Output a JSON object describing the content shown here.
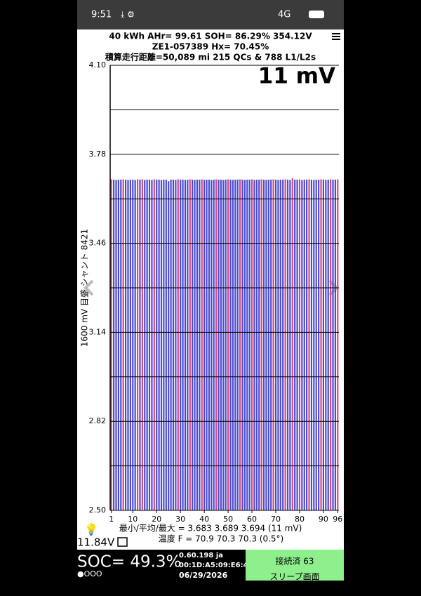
{
  "status_bar": {
    "time": "9:51",
    "network": "4G"
  },
  "header": {
    "line1": "40 kWh  AHr= 99.61  SOH= 86.29%  354.12V",
    "line2": "ZE1-057389  Hx= 70.45%",
    "line3": "積算走行距離=50,089 mi 215 QCs & 788 L1/L2s"
  },
  "chart_data": {
    "type": "bar",
    "annotation": "11 mV",
    "ylabel": "1600 mV 目盛 シャント 8421",
    "categories": [
      "1",
      null,
      null,
      null,
      null,
      null,
      null,
      null,
      null,
      "10",
      null,
      null,
      null,
      null,
      null,
      null,
      null,
      null,
      null,
      "20",
      null,
      null,
      null,
      null,
      null,
      null,
      null,
      null,
      null,
      "30",
      null,
      null,
      null,
      null,
      null,
      null,
      null,
      null,
      null,
      "40",
      null,
      null,
      null,
      null,
      null,
      null,
      null,
      null,
      null,
      "50",
      null,
      null,
      null,
      null,
      null,
      null,
      null,
      null,
      null,
      "60",
      null,
      null,
      null,
      null,
      null,
      null,
      null,
      null,
      null,
      "70",
      null,
      null,
      null,
      null,
      null,
      null,
      null,
      null,
      null,
      "80",
      null,
      null,
      null,
      null,
      null,
      null,
      null,
      null,
      null,
      "90",
      null,
      null,
      null,
      null,
      null,
      "96"
    ],
    "values": [
      3.69,
      3.689,
      3.688,
      3.689,
      3.689,
      3.69,
      3.689,
      3.688,
      3.689,
      3.689,
      3.688,
      3.69,
      3.689,
      3.69,
      3.688,
      3.689,
      3.689,
      3.688,
      3.69,
      3.689,
      3.689,
      3.688,
      3.689,
      3.689,
      3.683,
      3.689,
      3.689,
      3.688,
      3.69,
      3.689,
      3.689,
      3.688,
      3.689,
      3.69,
      3.689,
      3.688,
      3.689,
      3.689,
      3.69,
      3.688,
      3.689,
      3.689,
      3.688,
      3.689,
      3.69,
      3.689,
      3.689,
      3.688,
      3.689,
      3.69,
      3.689,
      3.688,
      3.689,
      3.689,
      3.69,
      3.689,
      3.688,
      3.689,
      3.689,
      3.69,
      3.688,
      3.689,
      3.689,
      3.69,
      3.689,
      3.688,
      3.689,
      3.689,
      3.69,
      3.689,
      3.688,
      3.689,
      3.689,
      3.69,
      3.689,
      3.688,
      3.694,
      3.689,
      3.689,
      3.69,
      3.688,
      3.689,
      3.689,
      3.69,
      3.689,
      3.688,
      3.689,
      3.689,
      3.69,
      3.689,
      3.688,
      3.689,
      3.69,
      3.689,
      3.689,
      3.69
    ],
    "colors": [
      "#d9467a",
      "#4a4ad6",
      "#4a4ad6",
      "#4a4ad6",
      "#4a4ad6",
      "#d9467a",
      "#4a4ad6",
      "#4a4ad6",
      "#4a4ad6",
      "#4a4ad6",
      "#4a4ad6",
      "#d9467a",
      "#4a4ad6",
      "#d9467a",
      "#4a4ad6",
      "#4a4ad6",
      "#4a4ad6",
      "#4a4ad6",
      "#d9467a",
      "#4a4ad6",
      "#4a4ad6",
      "#4a4ad6",
      "#4a4ad6",
      "#4a4ad6",
      "#4a4ad6",
      "#4a4ad6",
      "#4a4ad6",
      "#4a4ad6",
      "#d9467a",
      "#4a4ad6",
      "#4a4ad6",
      "#4a4ad6",
      "#4a4ad6",
      "#d9467a",
      "#4a4ad6",
      "#4a4ad6",
      "#4a4ad6",
      "#4a4ad6",
      "#d9467a",
      "#4a4ad6",
      "#4a4ad6",
      "#4a4ad6",
      "#4a4ad6",
      "#4a4ad6",
      "#d9467a",
      "#4a4ad6",
      "#4a4ad6",
      "#4a4ad6",
      "#4a4ad6",
      "#d9467a",
      "#4a4ad6",
      "#4a4ad6",
      "#4a4ad6",
      "#4a4ad6",
      "#d9467a",
      "#4a4ad6",
      "#4a4ad6",
      "#4a4ad6",
      "#4a4ad6",
      "#d9467a",
      "#4a4ad6",
      "#4a4ad6",
      "#4a4ad6",
      "#d9467a",
      "#4a4ad6",
      "#4a4ad6",
      "#4a4ad6",
      "#4a4ad6",
      "#d9467a",
      "#4a4ad6",
      "#4a4ad6",
      "#4a4ad6",
      "#4a4ad6",
      "#d9467a",
      "#4a4ad6",
      "#4a4ad6",
      "#d9467a",
      "#4a4ad6",
      "#4a4ad6",
      "#d9467a",
      "#4a4ad6",
      "#4a4ad6",
      "#4a4ad6",
      "#d9467a",
      "#4a4ad6",
      "#4a4ad6",
      "#4a4ad6",
      "#4a4ad6",
      "#d9467a",
      "#4a4ad6",
      "#4a4ad6",
      "#4a4ad6",
      "#d9467a",
      "#4a4ad6",
      "#4a4ad6",
      "#d9467a"
    ],
    "ylim": [
      2.5,
      4.1
    ],
    "yticks": [
      {
        "value": 2.5,
        "label": "2.50"
      },
      2.82,
      3.14,
      3.46,
      3.78,
      {
        "value": 4.1,
        "label": "4.10"
      }
    ],
    "minor_gridlines": [
      2.66,
      2.98,
      3.3,
      3.62,
      3.94
    ],
    "grid": true
  },
  "stats": {
    "minmax": "最小/平均/最大 = 3.683 3.689 3.694 (11 mV)",
    "temp": "温度 F = 70.9  70.3  70.3  (0.5°)"
  },
  "footer": {
    "aux_voltage": "11.84V",
    "soc": "SOC= 49.3%",
    "version": "0.60.198 ja",
    "mac": "00:1D:A5:09:E6:4",
    "date": "06/29/2026",
    "status_button": "接続済 63",
    "status_button_sub": "スリープ画面",
    "dots": "●OOO"
  }
}
